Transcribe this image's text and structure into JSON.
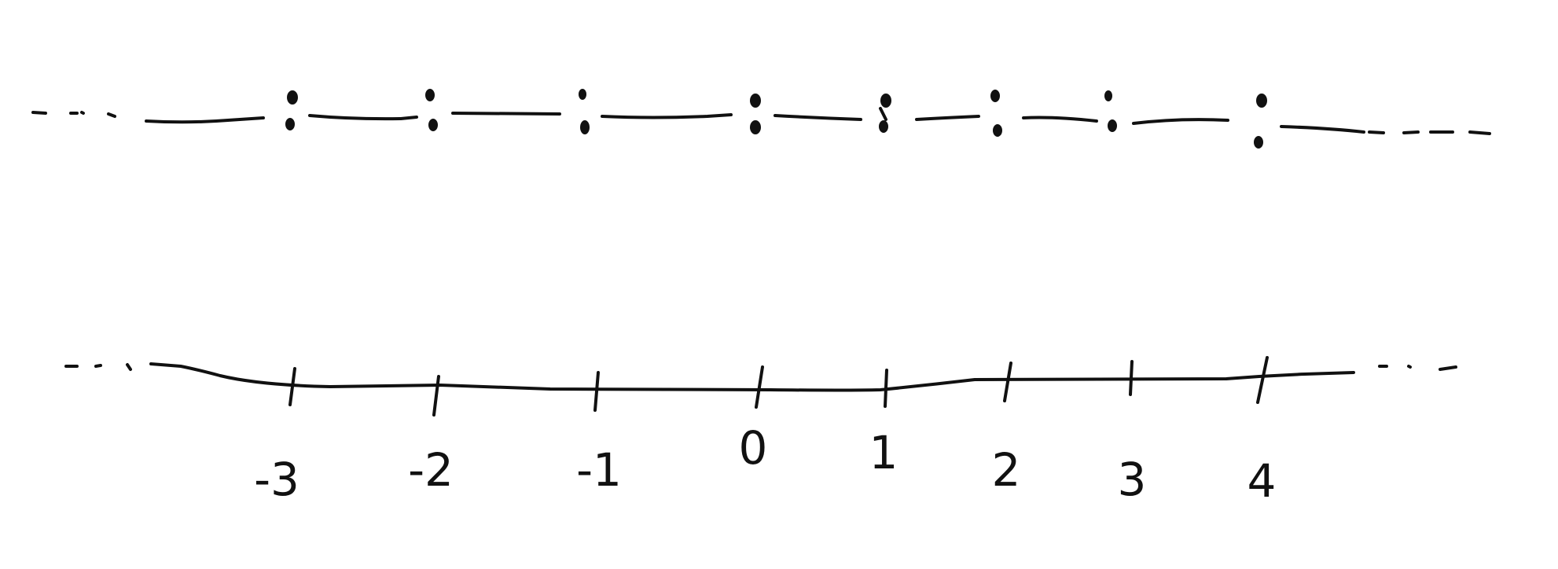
{
  "number_line": {
    "ticks": [
      "-3",
      "-2",
      "-1",
      "0",
      "1",
      "2",
      "3",
      "4"
    ],
    "continues": "both directions (ellipsis dashes at each end)"
  },
  "colors": {
    "ink": "#111111",
    "background": "#ffffff"
  }
}
